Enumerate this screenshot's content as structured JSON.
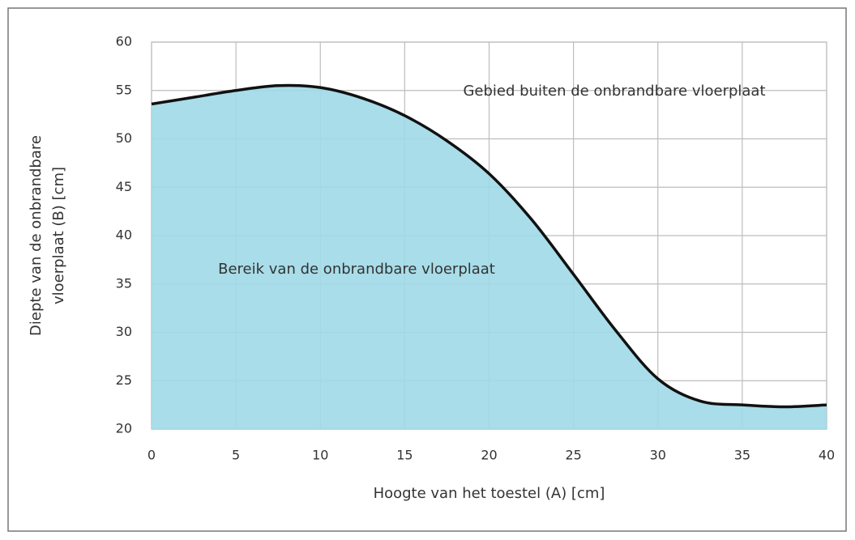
{
  "chart_data": {
    "type": "area",
    "xlabel": "Hoogte van het toestel (A) [cm]",
    "ylabel": [
      "Diepte van de onbrandbare",
      "vloerplaat (B) [cm]"
    ],
    "annotations": [
      "Gebied buiten de onbrandbare vloerplaat",
      "Bereik van de onbrandbare vloerplaat"
    ],
    "x": [
      0,
      2.5,
      5,
      7.5,
      10,
      12.5,
      15,
      17.5,
      20,
      22.5,
      25,
      27.5,
      30,
      32.5,
      35,
      37.5,
      40
    ],
    "values": [
      53.6,
      54.3,
      55.0,
      55.5,
      55.3,
      54.2,
      52.4,
      49.8,
      46.4,
      41.7,
      36.0,
      30.2,
      25.2,
      22.9,
      22.5,
      22.3,
      22.5
    ],
    "color": "#9fd9e7",
    "line_color": "#111111",
    "xlim": [
      0,
      40
    ],
    "xticks": [
      0,
      5,
      10,
      15,
      20,
      25,
      30,
      35,
      40
    ],
    "ylim": [
      20,
      60
    ],
    "yticks": [
      20,
      25,
      30,
      35,
      40,
      45,
      50,
      55,
      60
    ],
    "grid": true
  }
}
